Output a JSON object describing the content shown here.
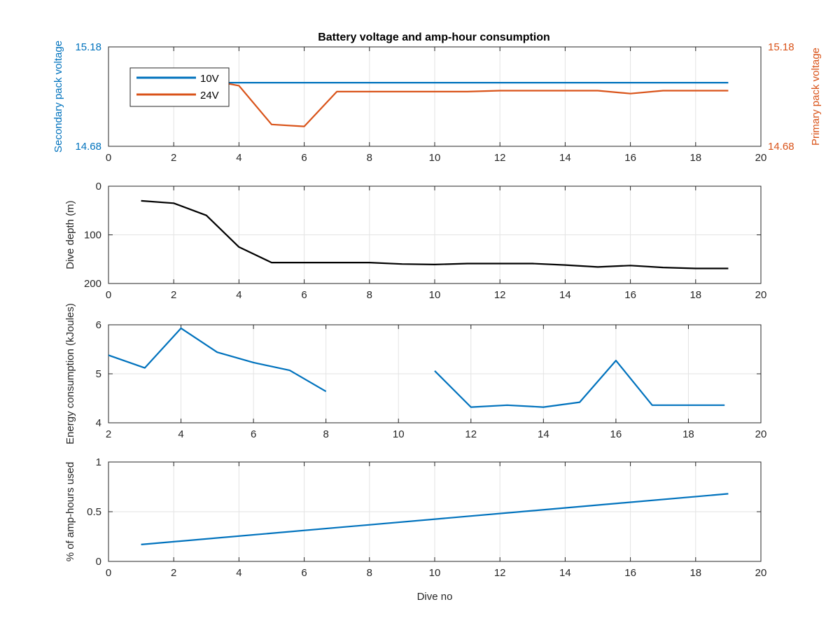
{
  "chart_data": [
    {
      "type": "line",
      "title": "Battery voltage and amp-hour consumption",
      "xlabel": "",
      "ylabel": "Secondary pack voltage",
      "ylabel_right": "Primary pack voltage",
      "xlim": [
        0,
        20
      ],
      "ylim": [
        14.68,
        15.18
      ],
      "ylim_right": [
        14.68,
        15.18
      ],
      "xticks": [
        "0",
        "2",
        "4",
        "6",
        "8",
        "10",
        "12",
        "14",
        "16",
        "18",
        "20"
      ],
      "yticks": [
        "14.68",
        "15.18"
      ],
      "yticks_right": [
        "14.68",
        "15.18"
      ],
      "grid": true,
      "legend": "top-left",
      "series": [
        {
          "name": "10V",
          "color": "#0072BD",
          "axis": "left",
          "x": [
            3.5,
            19
          ],
          "y": [
            15.0,
            15.0
          ]
        },
        {
          "name": "24V",
          "color": "#D95319",
          "axis": "right",
          "x": [
            3.5,
            4,
            5,
            6,
            7,
            8,
            9,
            10,
            11,
            12,
            13,
            14,
            15,
            16,
            17,
            18,
            19
          ],
          "y": [
            15.0,
            14.985,
            14.79,
            14.78,
            14.955,
            14.955,
            14.955,
            14.955,
            14.955,
            14.96,
            14.96,
            14.96,
            14.96,
            14.945,
            14.96,
            14.96,
            14.96
          ]
        }
      ]
    },
    {
      "type": "line",
      "title": "",
      "xlabel": "",
      "ylabel": "Dive depth (m)",
      "xlim": [
        0,
        20
      ],
      "ylim": [
        0,
        200
      ],
      "y_reversed": true,
      "xticks": [
        "0",
        "2",
        "4",
        "6",
        "8",
        "10",
        "12",
        "14",
        "16",
        "18",
        "20"
      ],
      "yticks": [
        "0",
        "100",
        "200"
      ],
      "grid": true,
      "series": [
        {
          "color": "#000000",
          "x": [
            1,
            2,
            3,
            4,
            5,
            6,
            7,
            8,
            9,
            10,
            11,
            12,
            13,
            14,
            15,
            16,
            17,
            18,
            19
          ],
          "y": [
            30,
            35,
            60,
            125,
            157,
            157,
            157,
            157,
            160,
            161,
            159,
            159,
            159,
            162,
            166,
            163,
            167,
            169,
            169
          ]
        }
      ]
    },
    {
      "type": "line",
      "title": "",
      "xlabel": "",
      "ylabel": "Energy consumption (kJoules)",
      "xlim": [
        2,
        20
      ],
      "ylim": [
        4,
        6
      ],
      "xticks": [
        "2",
        "4",
        "6",
        "8",
        "10",
        "12",
        "14",
        "16",
        "18",
        "20"
      ],
      "yticks": [
        "4",
        "5",
        "6"
      ],
      "grid": true,
      "series": [
        {
          "color": "#0072BD",
          "segments": [
            {
              "x": [
                2,
                3,
                4,
                5,
                6,
                7,
                8
              ],
              "y": [
                5.38,
                5.12,
                5.93,
                5.44,
                5.23,
                5.07,
                4.64
              ]
            },
            {
              "x": [
                11,
                12,
                13,
                14,
                15,
                16,
                17,
                18,
                19
              ],
              "y": [
                5.06,
                4.32,
                4.36,
                4.32,
                4.42,
                5.27,
                4.36,
                4.36,
                4.36
              ]
            }
          ]
        }
      ]
    },
    {
      "type": "line",
      "title": "",
      "xlabel": "Dive no",
      "ylabel": "% of amp-hours used",
      "xlim": [
        0,
        20
      ],
      "ylim": [
        0,
        1
      ],
      "xticks": [
        "0",
        "2",
        "4",
        "6",
        "8",
        "10",
        "12",
        "14",
        "16",
        "18",
        "20"
      ],
      "yticks": [
        "0",
        "0.5",
        "1"
      ],
      "grid": true,
      "series": [
        {
          "color": "#0072BD",
          "x": [
            1,
            19
          ],
          "y": [
            0.17,
            0.68
          ]
        }
      ]
    }
  ]
}
